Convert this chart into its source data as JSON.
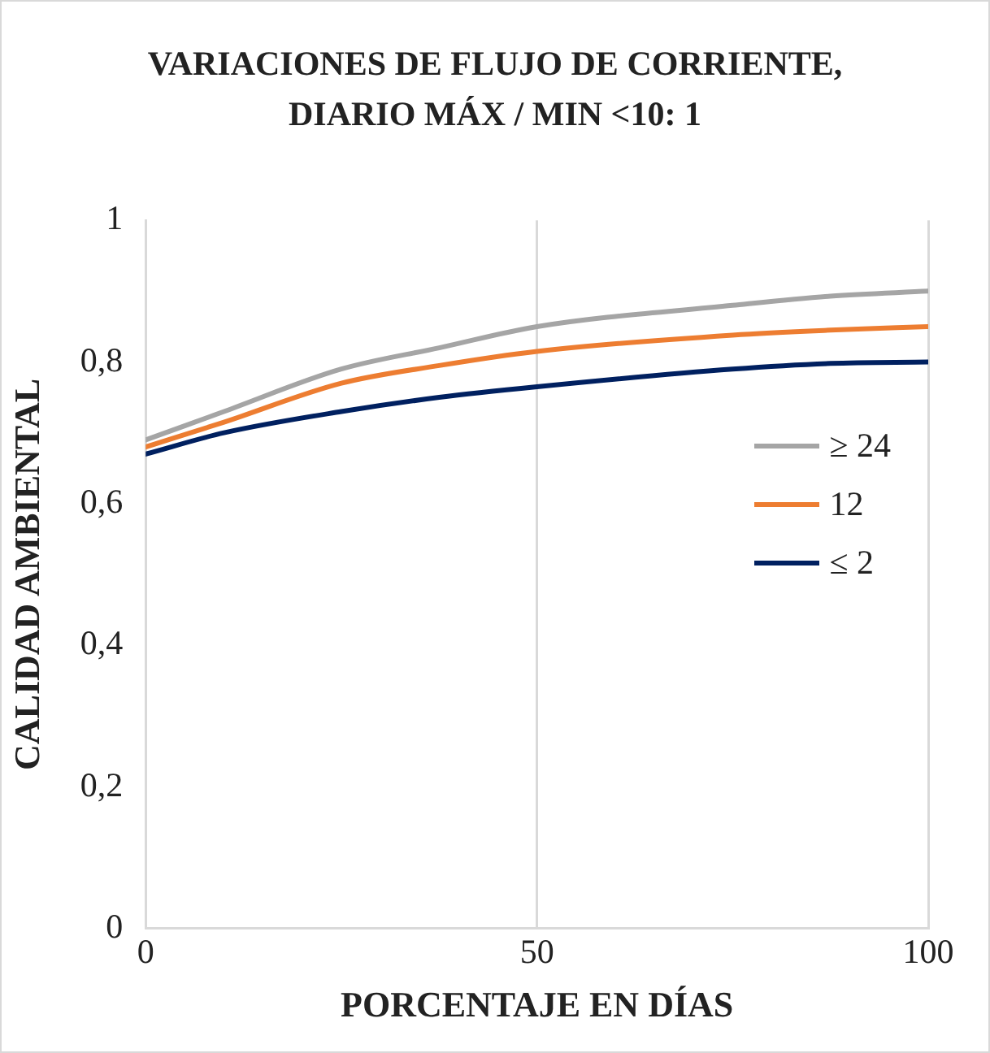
{
  "chart_data": {
    "type": "line",
    "title": "VARIACIONES DE FLUJO DE CORRIENTE, DIARIO MÁX / MIN <10: 1",
    "xlabel": "PORCENTAJE EN DÍAS",
    "ylabel": "CALIDAD AMBIENTAL",
    "x": [
      0,
      10,
      25,
      37.5,
      50,
      75,
      87.5,
      100
    ],
    "series": [
      {
        "name": "≥ 24",
        "color": "#a5a5a5",
        "values": [
          0.69,
          0.73,
          0.79,
          0.82,
          0.85,
          0.88,
          0.893,
          0.9
        ]
      },
      {
        "name": "12",
        "color": "#ed7d31",
        "values": [
          0.68,
          0.715,
          0.77,
          0.795,
          0.815,
          0.838,
          0.845,
          0.85
        ]
      },
      {
        "name": "≤ 2",
        "color": "#002060",
        "values": [
          0.67,
          0.7,
          0.73,
          0.75,
          0.765,
          0.79,
          0.798,
          0.8
        ]
      }
    ],
    "xlim": [
      0,
      100
    ],
    "xticks": [
      0,
      50,
      100
    ],
    "ylim": [
      0,
      1
    ],
    "yticks": [
      0,
      {
        "value": 0.2,
        "label": "0,2"
      },
      {
        "value": 0.4,
        "label": "0,4"
      },
      {
        "value": 0.6,
        "label": "0,6"
      },
      {
        "value": 0.8,
        "label": "0,8"
      },
      1
    ],
    "grid": "x",
    "legend": "right",
    "marker": "none",
    "line_style": "solid"
  }
}
